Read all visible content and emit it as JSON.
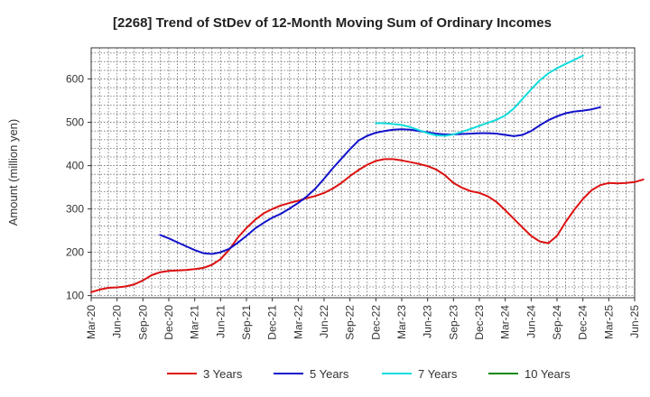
{
  "chart_data": {
    "type": "line",
    "title": "[2268]  Trend of StDev of 12-Month Moving Sum of Ordinary Incomes",
    "xlabel": "",
    "ylabel": "Amount (million yen)",
    "ylim": [
      95,
      672
    ],
    "yticks": [
      100,
      200,
      300,
      400,
      500,
      600
    ],
    "xlim": [
      0,
      63
    ],
    "x_tick_labels": [
      "Mar-20",
      "Jun-20",
      "Sep-20",
      "Dec-20",
      "Mar-21",
      "Jun-21",
      "Sep-21",
      "Dec-21",
      "Mar-22",
      "Jun-22",
      "Sep-22",
      "Dec-22",
      "Mar-23",
      "Jun-23",
      "Sep-23",
      "Dec-23",
      "Mar-24",
      "Jun-24",
      "Sep-24",
      "Dec-24",
      "Mar-25",
      "Jun-25"
    ],
    "grid": true,
    "legend_position": "bottom",
    "series": [
      {
        "name": "3 Years",
        "color": "#dd1111",
        "start_month_index": 0,
        "values": [
          108,
          114,
          118,
          119,
          121,
          126,
          135,
          147,
          154,
          157,
          158,
          159,
          161,
          164,
          171,
          184,
          206,
          234,
          256,
          275,
          290,
          300,
          308,
          314,
          319,
          325,
          330,
          337,
          347,
          360,
          376,
          390,
          402,
          411,
          415,
          415,
          412,
          408,
          404,
          399,
          391,
          378,
          360,
          349,
          341,
          337,
          329,
          316,
          297,
          277,
          257,
          238,
          225,
          221,
          238,
          270,
          298,
          323,
          343,
          355,
          360,
          359,
          360,
          362,
          368
        ]
      },
      {
        "name": "5 Years",
        "color": "#1111cc",
        "start_month_index": 8,
        "values": [
          240,
          232,
          223,
          214,
          205,
          198,
          196,
          200,
          208,
          222,
          238,
          255,
          268,
          280,
          289,
          301,
          314,
          329,
          347,
          370,
          394,
          416,
          438,
          458,
          469,
          476,
          480,
          483,
          484,
          483,
          480,
          477,
          474,
          472,
          472,
          473,
          474,
          475,
          475,
          474,
          471,
          468,
          471,
          480,
          493,
          505,
          514,
          521,
          525,
          527,
          530,
          535
        ]
      },
      {
        "name": "7 Years",
        "color": "#11dddd",
        "start_month_index": 33,
        "values": [
          498,
          498,
          496,
          494,
          489,
          482,
          475,
          470,
          469,
          472,
          478,
          485,
          492,
          499,
          506,
          516,
          532,
          554,
          576,
          597,
          613,
          625,
          635,
          644,
          654
        ]
      },
      {
        "name": "10 Years",
        "color": "#118811",
        "start_month_index": 0,
        "values": []
      }
    ]
  }
}
